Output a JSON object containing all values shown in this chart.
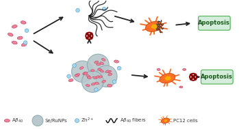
{
  "bg_color": "#ffffff",
  "apoptosis_box_color": "#d4edda",
  "apoptosis_box_edge": "#5cb85c",
  "apoptosis_text": "Apoptosis",
  "arrow_color": "#222222",
  "block_color": "#8b0000",
  "ab_color": "#f08098",
  "ab_edge": "#c0506a",
  "nanoparticle_color": "#b8c8cc",
  "nanoparticle_edge": "#8aaab0",
  "zn_color": "#a8d8f0",
  "zn_edge": "#60a8d0",
  "fiber_color": "#1a1a1a",
  "cell_color": "#ff6820",
  "cell_edge": "#cc4400",
  "cell_dark": "#333333"
}
